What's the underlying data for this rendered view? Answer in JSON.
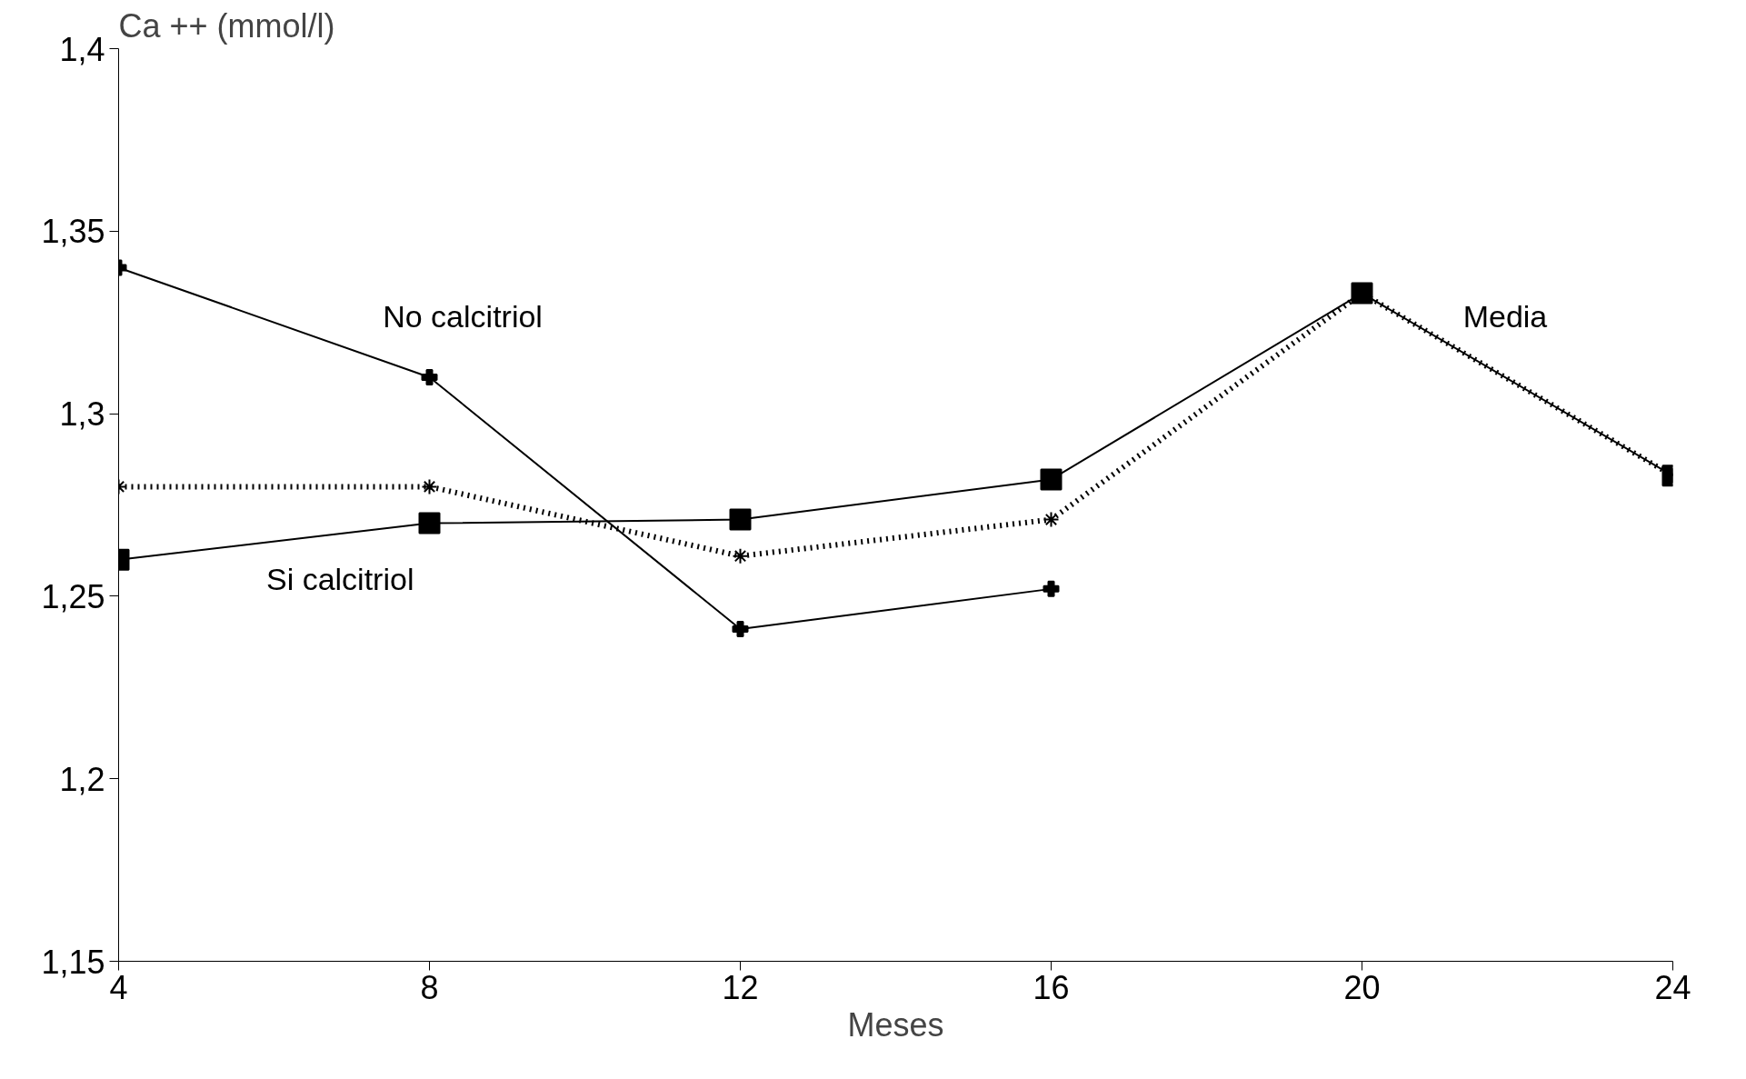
{
  "chart_data": {
    "type": "line",
    "ylabel": "Ca ++ (mmol/l)",
    "xlabel": "Meses",
    "x": [
      4,
      8,
      12,
      16,
      20,
      24
    ],
    "xlim": [
      4,
      24
    ],
    "xticks": [
      4,
      8,
      12,
      16,
      20,
      24
    ],
    "ylim": [
      1.15,
      1.4
    ],
    "yticks": [
      {
        "value": 1.15,
        "label": "1,15"
      },
      {
        "value": 1.2,
        "label": "1,2"
      },
      {
        "value": 1.25,
        "label": "1,25"
      },
      {
        "value": 1.3,
        "label": "1,3"
      },
      {
        "value": 1.35,
        "label": "1,35"
      },
      {
        "value": 1.4,
        "label": "1,4"
      }
    ],
    "grid": false,
    "series": [
      {
        "name": "No calcitriol",
        "color": "#000000",
        "marker": "cross",
        "line_style": "solid",
        "values": [
          1.34,
          1.31,
          1.241,
          1.252,
          null,
          null
        ]
      },
      {
        "name": "Si calcitriol",
        "color": "#000000",
        "marker": "square",
        "line_style": "solid",
        "values": [
          1.26,
          1.27,
          1.271,
          1.282,
          1.333,
          1.283
        ]
      },
      {
        "name": "Media",
        "color": "#000000",
        "marker": "cross",
        "line_style": "dotted",
        "values": [
          1.28,
          1.28,
          1.261,
          1.271,
          1.333,
          1.283
        ]
      }
    ]
  }
}
